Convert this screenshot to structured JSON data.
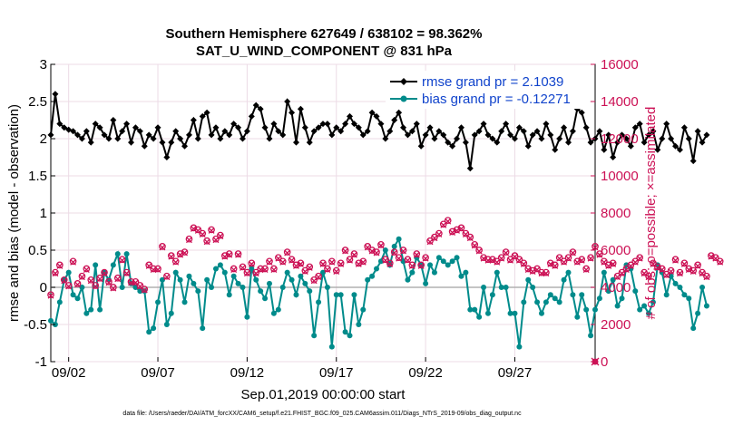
{
  "chart_data": {
    "type": "line",
    "title": "Southern Hemisphere 627649 / 638102 = 98.362%",
    "subtitle": "SAT_U_WIND_COMPONENT @ 831 hPa",
    "xlabel": "Sep.01,2019 00:00:00 start",
    "ylabel_left": "rmse and bias (model - observation)",
    "ylabel_right": "# of obs: o=possible; ×=assimilated",
    "footer": "data file: /Users/raeder/DAI/ATM_forcXX/CAM6_setup/f.e21.FHIST_BGC.f09_025.CAM6assim.011/Diags_NTrS_2019-09/obs_diag_output.nc",
    "xlim": [
      1,
      31.5
    ],
    "ylim_left": [
      -1,
      3
    ],
    "ylim_right": [
      0,
      16000
    ],
    "x_ticks": [
      {
        "value": 2,
        "label": "09/02"
      },
      {
        "value": 7,
        "label": "09/07"
      },
      {
        "value": 12,
        "label": "09/12"
      },
      {
        "value": 17,
        "label": "09/17"
      },
      {
        "value": 22,
        "label": "09/22"
      },
      {
        "value": 27,
        "label": "09/27"
      }
    ],
    "y_ticks_left": [
      "-1",
      "-0.5",
      "0",
      "0.5",
      "1",
      "1.5",
      "2",
      "2.5",
      "3"
    ],
    "y_ticks_right": [
      "0",
      "2000",
      "4000",
      "6000",
      "8000",
      "10000",
      "12000",
      "14000",
      "16000"
    ],
    "grid": true,
    "zero_line": 0,
    "legend_position": "top-right",
    "series": [
      {
        "name": "rmse grand pr = 2.1039",
        "color": "#000000",
        "marker": "diamond",
        "axis": "left",
        "start_day": 1,
        "step_days": 0.25,
        "values": [
          2.05,
          2.6,
          2.2,
          2.15,
          2.12,
          2.1,
          2.05,
          2.0,
          2.1,
          1.95,
          2.2,
          2.15,
          2.05,
          2.0,
          2.25,
          2.0,
          2.1,
          2.2,
          1.95,
          2.15,
          2.1,
          1.9,
          2.05,
          2.0,
          2.15,
          1.95,
          1.75,
          1.95,
          2.1,
          2.0,
          1.9,
          2.05,
          2.25,
          2.0,
          2.3,
          2.35,
          2.05,
          2.15,
          2.0,
          2.1,
          2.05,
          2.2,
          2.15,
          2.0,
          2.1,
          2.3,
          2.45,
          2.4,
          2.15,
          2.0,
          2.2,
          2.1,
          2.05,
          2.5,
          2.35,
          1.95,
          2.4,
          2.15,
          1.95,
          2.1,
          2.15,
          2.2,
          2.2,
          2.05,
          2.15,
          2.1,
          2.2,
          2.3,
          2.2,
          2.15,
          2.05,
          2.1,
          2.35,
          2.3,
          2.2,
          2.0,
          2.1,
          2.25,
          2.35,
          2.15,
          2.05,
          2.1,
          2.2,
          1.9,
          2.05,
          2.15,
          2.0,
          2.1,
          2.05,
          1.95,
          1.9,
          2.0,
          2.15,
          1.95,
          1.6,
          2.05,
          2.1,
          2.2,
          2.05,
          2.0,
          1.95,
          2.1,
          2.2,
          2.05,
          2.0,
          2.15,
          2.1,
          1.9,
          2.05,
          2.1,
          2.0,
          2.2,
          2.05,
          1.85,
          2.0,
          2.15,
          1.95,
          2.1,
          2.4,
          2.35,
          2.15,
          1.95,
          2.0,
          2.1,
          1.85,
          2.05,
          1.75,
          1.95,
          2.05,
          2.0,
          1.9,
          2.15,
          2.2,
          1.95,
          2.05,
          2.1,
          1.85,
          2.0,
          2.2,
          2.0,
          1.9,
          1.85,
          2.15,
          2.0,
          1.7,
          2.1,
          1.95,
          2.05
        ]
      },
      {
        "name": "bias grand pr = -0.12271",
        "color": "#008b8b",
        "marker": "circle",
        "axis": "left",
        "start_day": 1,
        "step_days": 0.25,
        "values": [
          -0.45,
          -0.5,
          -0.2,
          0.1,
          0.2,
          -0.1,
          -0.15,
          0.0,
          -0.35,
          -0.3,
          0.3,
          -0.3,
          0.2,
          0.1,
          0.3,
          0.45,
          0.0,
          0.45,
          0.05,
          0.0,
          -0.05,
          -0.05,
          -0.6,
          -0.55,
          -0.2,
          0.1,
          -0.5,
          -0.35,
          0.2,
          0.1,
          -0.2,
          0.15,
          0.05,
          -0.05,
          -0.55,
          0.1,
          0.0,
          0.25,
          0.3,
          0.2,
          -0.1,
          0.15,
          0.05,
          0.0,
          -0.4,
          0.25,
          0.1,
          -0.05,
          -0.15,
          0.05,
          -0.35,
          -0.3,
          0.0,
          0.2,
          0.1,
          -0.1,
          0.15,
          0.05,
          -0.05,
          -0.65,
          -0.2,
          0.2,
          0.0,
          -0.8,
          -0.1,
          -0.1,
          -0.6,
          -0.65,
          -0.1,
          -0.5,
          -0.3,
          0.1,
          0.15,
          0.25,
          0.35,
          0.5,
          0.3,
          0.55,
          0.65,
          0.35,
          0.1,
          0.2,
          0.4,
          0.3,
          0.05,
          0.3,
          0.2,
          0.4,
          0.35,
          0.3,
          0.35,
          0.4,
          0.15,
          0.2,
          -0.3,
          -0.3,
          -0.4,
          0.0,
          -0.35,
          -0.1,
          0.2,
          0.0,
          0.0,
          -0.35,
          -0.35,
          -0.8,
          -0.2,
          0.1,
          0.0,
          -0.2,
          -0.35,
          -0.2,
          -0.1,
          -0.15,
          -0.2,
          0.1,
          0.2,
          -0.1,
          -0.4,
          -0.1,
          -0.3,
          -0.65,
          -0.3,
          -0.15,
          0.2,
          -0.05,
          0.1,
          -0.25,
          -0.15,
          0.3,
          0.25,
          -0.05,
          -0.3,
          -0.25,
          -0.35,
          -0.2,
          0.3,
          0.2,
          -0.1,
          0.15,
          0.05,
          0.0,
          -0.1,
          -0.15,
          -0.55,
          -0.35,
          0.0,
          -0.25
        ]
      },
      {
        "name": "obs possible",
        "color": "#cc1155",
        "marker": "circle-open",
        "axis": "right",
        "start_day": 1,
        "step_days": 0.25,
        "values": [
          3600,
          4800,
          5200,
          4400,
          4100,
          5400,
          4200,
          4600,
          5000,
          4400,
          4100,
          4500,
          4800,
          4300,
          4000,
          4500,
          5500,
          4800,
          4300,
          4300,
          4100,
          3900,
          5200,
          5000,
          5000,
          6200,
          4600,
          5700,
          5400,
          5800,
          5900,
          6600,
          7200,
          7100,
          6900,
          6500,
          7100,
          6600,
          6800,
          5700,
          5800,
          5000,
          5800,
          5100,
          4800,
          5300,
          4800,
          5000,
          5000,
          5400,
          5000,
          5600,
          5400,
          5900,
          5500,
          5200,
          5300,
          4900,
          5100,
          4400,
          4600,
          5300,
          5000,
          5400,
          4900,
          5300,
          6000,
          5500,
          5800,
          5300,
          5400,
          6200,
          6000,
          5900,
          6300,
          5500,
          5300,
          5900,
          5600,
          6000,
          5500,
          5200,
          5800,
          5200,
          5600,
          6500,
          6700,
          6900,
          7400,
          7600,
          7000,
          7100,
          7200,
          6900,
          6700,
          6300,
          6000,
          5600,
          5500,
          5500,
          5400,
          5600,
          5900,
          5500,
          5700,
          5500,
          5300,
          5000,
          4900,
          5000,
          4800,
          4800,
          5300,
          5200,
          5600,
          5400,
          5600,
          5900,
          5400,
          5500,
          5000,
          5600,
          6200,
          5800,
          5400,
          5200,
          5300,
          4600,
          4800,
          5000,
          5200,
          5400,
          5600,
          4800,
          4600,
          5300,
          5100,
          5000,
          4700,
          4900,
          5500,
          4800,
          5300,
          5000,
          4900,
          5200,
          4800,
          4600,
          5700,
          5600,
          5400
        ]
      },
      {
        "name": "obs assimilated",
        "color": "#cc1155",
        "marker": "cross",
        "axis": "right",
        "start_day": 1,
        "step_days": 0.25,
        "values": [
          3550,
          4750,
          5150,
          4350,
          4050,
          5350,
          4150,
          4550,
          4950,
          4350,
          4050,
          4450,
          4750,
          4250,
          3950,
          4450,
          5450,
          4750,
          4250,
          4250,
          4050,
          3850,
          5150,
          4950,
          4950,
          6150,
          4550,
          5650,
          5350,
          5750,
          5850,
          6550,
          7150,
          7050,
          6850,
          6450,
          7050,
          6550,
          6750,
          5650,
          5750,
          4950,
          5750,
          5050,
          4750,
          5250,
          4750,
          4950,
          4950,
          5350,
          4950,
          5550,
          5350,
          5850,
          5450,
          5150,
          5250,
          4850,
          5050,
          4350,
          4550,
          5250,
          4950,
          5350,
          4850,
          5250,
          5950,
          5450,
          5750,
          5250,
          5350,
          6150,
          5950,
          5850,
          6250,
          5450,
          5250,
          5850,
          5550,
          5950,
          5450,
          5150,
          5750,
          5150,
          5550,
          6450,
          6650,
          6850,
          7350,
          7550,
          6950,
          7050,
          7150,
          6850,
          6650,
          6250,
          5950,
          5550,
          5450,
          5450,
          5350,
          5550,
          5850,
          5450,
          5650,
          5450,
          5250,
          4950,
          4850,
          4950,
          4750,
          4750,
          5250,
          5150,
          5550,
          5350,
          5550,
          5850,
          5350,
          5450,
          4950,
          5550,
          6150,
          5750,
          5350,
          5150,
          5250,
          4550,
          4750,
          4950,
          5150,
          5350,
          5550,
          4750,
          4550,
          5250,
          5050,
          4950,
          4650,
          4850,
          5450,
          4750,
          5250,
          4950,
          4850,
          5150,
          4750,
          4550,
          5650,
          5550,
          5350
        ]
      }
    ],
    "outlier_point": {
      "x": 31.5,
      "y_right": 0
    }
  }
}
